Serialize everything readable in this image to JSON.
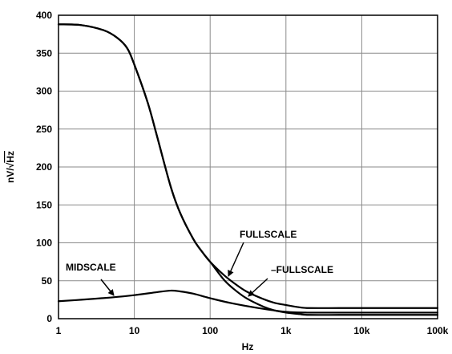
{
  "chart_data": {
    "type": "line",
    "xscale": "log",
    "xlim": [
      1,
      100000
    ],
    "ylim": [
      0,
      400
    ],
    "xlabel": "Hz",
    "ylabel": "nV/√Hz",
    "grid": true,
    "x_ticks": [
      1,
      10,
      100,
      1000,
      10000,
      100000
    ],
    "x_tick_labels": [
      "1",
      "10",
      "100",
      "1k",
      "10k",
      "100k"
    ],
    "y_ticks": [
      0,
      50,
      100,
      150,
      200,
      250,
      300,
      350,
      400
    ],
    "y_tick_labels": [
      "0",
      "50",
      "100",
      "150",
      "200",
      "250",
      "300",
      "350",
      "400"
    ],
    "series": [
      {
        "name": "FULLSCALE",
        "x": [
          1,
          2,
          4,
          6,
          8,
          10,
          15,
          20,
          30,
          40,
          60,
          80,
          100,
          150,
          200,
          300,
          500,
          700,
          1000,
          1500,
          2000,
          5000,
          10000,
          100000
        ],
        "y": [
          388,
          387,
          380,
          370,
          357,
          335,
          285,
          240,
          175,
          140,
          105,
          87,
          75,
          58,
          48,
          36,
          26,
          21,
          18,
          15,
          14,
          14,
          14,
          14
        ]
      },
      {
        "name": "–FULLSCALE",
        "x": [
          1,
          2,
          4,
          6,
          8,
          10,
          15,
          20,
          30,
          40,
          60,
          80,
          100,
          150,
          200,
          300,
          500,
          700,
          1000,
          1500,
          2000,
          5000,
          10000,
          100000
        ],
        "y": [
          388,
          387,
          380,
          370,
          357,
          335,
          285,
          240,
          175,
          140,
          105,
          87,
          75,
          52,
          40,
          27,
          16,
          11,
          8,
          6,
          5,
          5,
          5,
          5
        ]
      },
      {
        "name": "MIDSCALE",
        "x": [
          1,
          2,
          5,
          10,
          20,
          30,
          40,
          60,
          100,
          200,
          500,
          1000,
          2000,
          10000,
          100000
        ],
        "y": [
          23,
          25,
          28,
          31,
          35,
          37,
          36,
          33,
          27,
          20,
          13,
          9,
          8,
          8,
          8
        ]
      }
    ],
    "annotations": [
      {
        "text": "MIDSCALE",
        "target_series": "MIDSCALE"
      },
      {
        "text": "FULLSCALE",
        "target_series": "FULLSCALE"
      },
      {
        "text": "–FULLSCALE",
        "target_series": "–FULLSCALE"
      }
    ]
  }
}
